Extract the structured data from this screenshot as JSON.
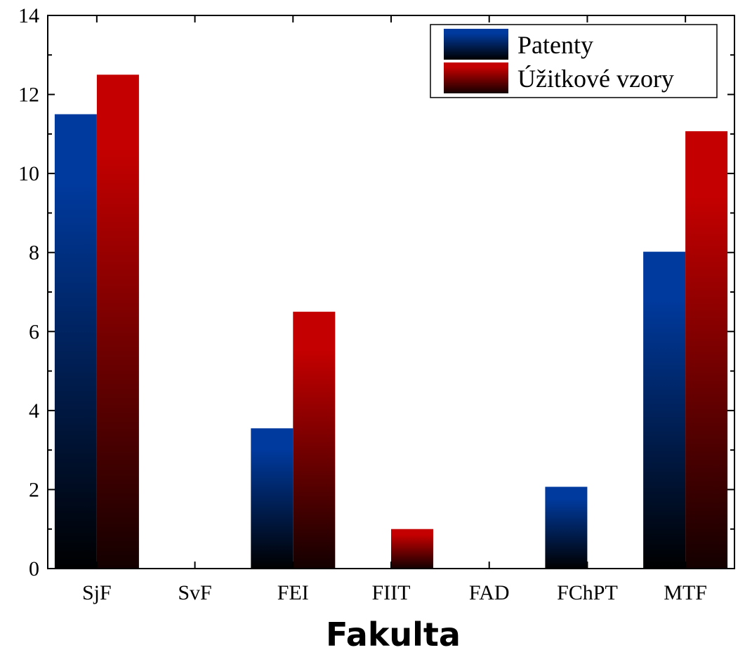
{
  "chart_data": {
    "type": "bar",
    "title": "",
    "xlabel": "Fakulta",
    "ylabel": "",
    "categories": [
      "SjF",
      "SvF",
      "FEI",
      "FIIT",
      "FAD",
      "FChPT",
      "MTF"
    ],
    "ylim": [
      0,
      14
    ],
    "yticks": [
      "0",
      "2",
      "4",
      "6",
      "8",
      "10",
      "12",
      "14"
    ],
    "series": [
      {
        "name": "Patenty",
        "values": [
          11.5,
          0,
          3.55,
          0,
          0,
          2.07,
          8.02
        ],
        "color_top": "#003a9e",
        "color_bottom": "#000000"
      },
      {
        "name": "Úžitkové vzory",
        "values": [
          12.5,
          0,
          6.5,
          1.0,
          0,
          0,
          11.07
        ],
        "color_top": "#c40000",
        "color_bottom": "#140000"
      }
    ],
    "legend_position": "top-right",
    "grid": false
  }
}
